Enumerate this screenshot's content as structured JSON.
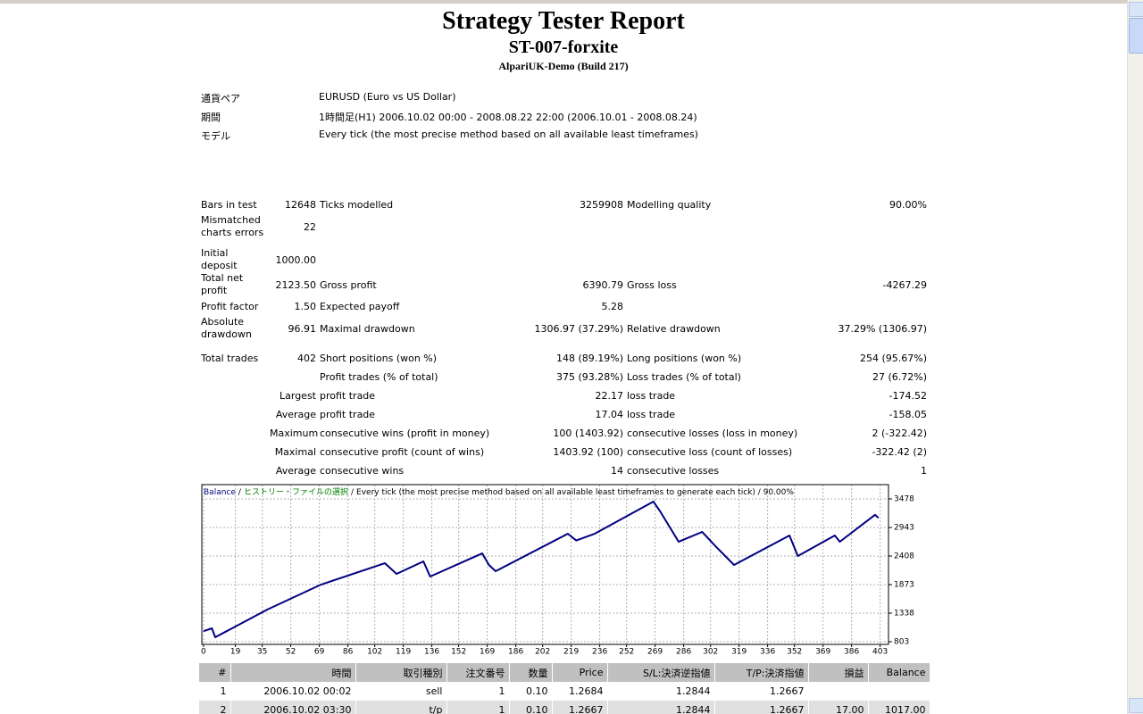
{
  "header": {
    "title": "Strategy Tester Report",
    "subtitle": "ST-007-forxite",
    "server": "AlpariUK-Demo (Build 217)"
  },
  "info": [
    [
      "通貨ペア",
      "EURUSD (Euro vs US Dollar)"
    ],
    [
      "期間",
      "1時間足(H1) 2006.10.02 00:00 - 2008.08.22 22:00 (2006.10.01 - 2008.08.24)"
    ],
    [
      "モデル",
      "Every tick (the most precise method based on all available least timeframes)"
    ]
  ],
  "stats": [
    [
      [
        "Bars in test",
        "12648",
        "Ticks modelled",
        "3259908",
        "Modelling quality",
        "90.00%"
      ],
      [
        "Mismatched charts errors",
        "22",
        null,
        null,
        null,
        null
      ]
    ],
    [
      [
        "Initial deposit",
        "1000.00",
        null,
        null,
        null,
        null
      ],
      [
        "Total net profit",
        "2123.50",
        "Gross profit",
        "6390.79",
        "Gross loss",
        "-4267.29"
      ],
      [
        "Profit factor",
        "1.50",
        "Expected payoff",
        "5.28",
        null,
        null
      ],
      [
        "Absolute drawdown",
        "96.91",
        "Maximal drawdown",
        "1306.97 (37.29%)",
        "Relative drawdown",
        "37.29% (1306.97)"
      ]
    ],
    [
      [
        "Total trades",
        "402",
        "Short positions (won %)",
        "148 (89.19%)",
        "Long positions (won %)",
        "254 (95.67%)"
      ],
      [
        null,
        null,
        "Profit trades (% of total)",
        "375 (93.28%)",
        "Loss trades (% of total)",
        "27 (6.72%)"
      ],
      [
        null,
        "Largest",
        "profit trade",
        "22.17",
        "loss trade",
        "-174.52"
      ],
      [
        null,
        "Average",
        "profit trade",
        "17.04",
        "loss trade",
        "-158.05"
      ],
      [
        null,
        "Maximum",
        "consecutive wins (profit in money)",
        "100 (1403.92)",
        "consecutive losses (loss in money)",
        "2 (-322.42)"
      ],
      [
        null,
        "Maximal",
        "consecutive profit (count of wins)",
        "1403.92 (100)",
        "consecutive loss (count of losses)",
        "-322.42 (2)"
      ],
      [
        null,
        "Average",
        "consecutive wins",
        "14",
        "consecutive losses",
        "1"
      ]
    ]
  ],
  "chart_data": {
    "type": "line",
    "separator": "/",
    "history_label": "ヒストリー・ファイルの選択",
    "model_note": "Every tick (the most precise method based on all available least timeframes to generate each tick) / 90.00%",
    "x": [
      0,
      5,
      7,
      38,
      70,
      108,
      115,
      131,
      135,
      166,
      170,
      174,
      217,
      222,
      233,
      268,
      272,
      283,
      297,
      305,
      316,
      349,
      354,
      376,
      379,
      400,
      402
    ],
    "series": [
      {
        "name": "Balance",
        "color": "#000080",
        "values": [
          1000,
          1054,
          887,
          1405,
          1873,
          2274,
          2074,
          2308,
          2024,
          2458,
          2241,
          2124,
          2826,
          2700,
          2826,
          3428,
          3244,
          2676,
          2860,
          2592,
          2241,
          2793,
          2408,
          2793,
          2676,
          3180,
          3124
        ]
      }
    ],
    "xlim": [
      -1,
      408
    ],
    "ylim": [
      753,
      3746
    ],
    "xticks": [
      0,
      19,
      35,
      52,
      69,
      86,
      102,
      119,
      136,
      152,
      169,
      186,
      202,
      219,
      236,
      252,
      269,
      286,
      302,
      319,
      336,
      352,
      369,
      386,
      403
    ],
    "yticks": [
      803,
      1338,
      1873,
      2408,
      2943,
      3478
    ],
    "grid": true
  },
  "trades": {
    "columns": [
      "#",
      "時間",
      "取引種別",
      "注文番号",
      "数量",
      "Price",
      "S/L:決済逆指値",
      "T/P:決済指値",
      "損益",
      "Balance"
    ],
    "rows": [
      [
        "1",
        "2006.10.02 00:02",
        "sell",
        "1",
        "0.10",
        "1.2684",
        "1.2844",
        "1.2667",
        null,
        null
      ],
      [
        "2",
        "2006.10.02 03:30",
        "t/p",
        "1",
        "0.10",
        "1.2667",
        "1.2844",
        "1.2667",
        "17.00",
        "1017.00"
      ]
    ]
  }
}
